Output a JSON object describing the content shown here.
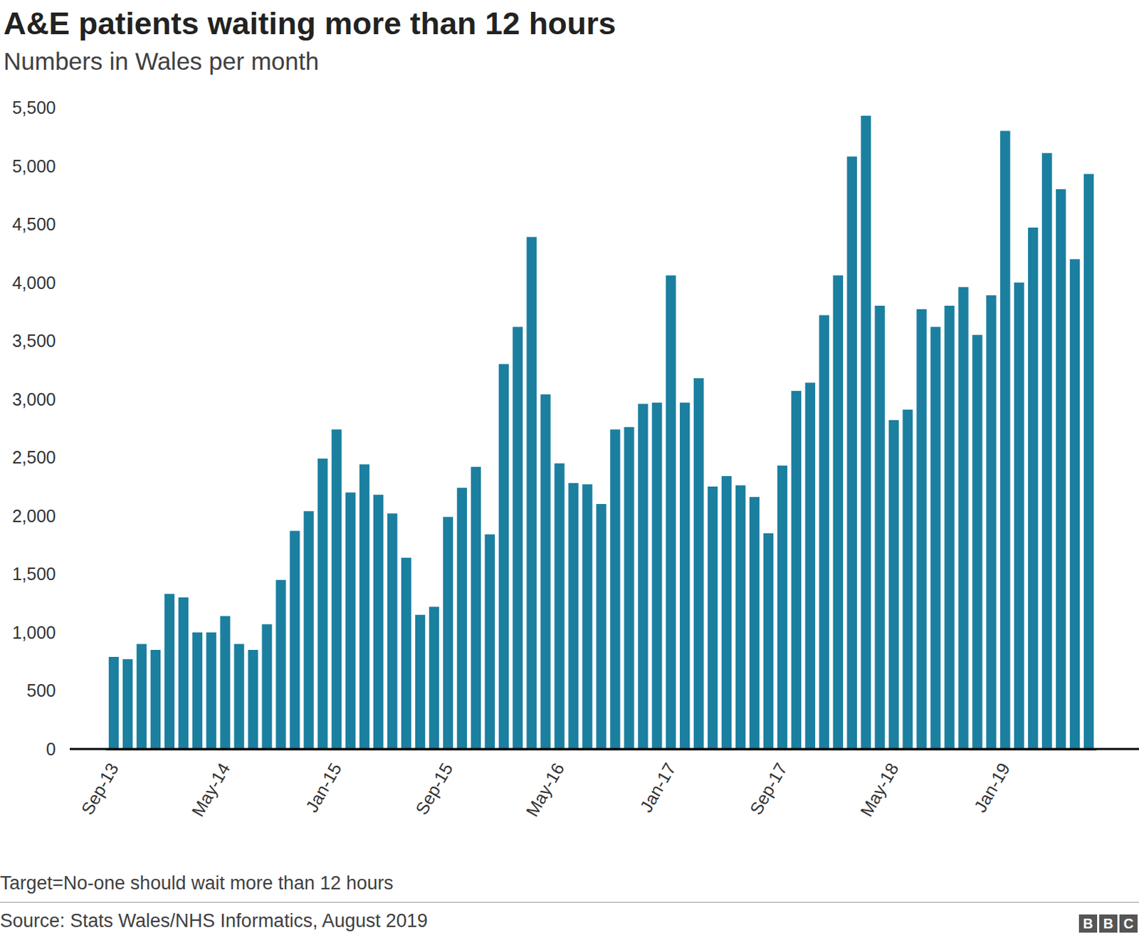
{
  "chart_data": {
    "type": "bar",
    "title": "A&E patients waiting more than 12 hours",
    "subtitle": "Numbers in Wales per month",
    "footnote": "Target=No-one should wait more than 12 hours",
    "source": "Source: Stats Wales/NHS Informatics, August 2019",
    "brand": "BBC",
    "categories": [
      "Sep-13",
      null,
      null,
      null,
      null,
      null,
      null,
      null,
      "May-14",
      null,
      null,
      null,
      null,
      null,
      null,
      null,
      "Jan-15",
      null,
      null,
      null,
      null,
      null,
      null,
      null,
      "Sep-15",
      null,
      null,
      null,
      null,
      null,
      null,
      null,
      "May-16",
      null,
      null,
      null,
      null,
      null,
      null,
      null,
      "Jan-17",
      null,
      null,
      null,
      null,
      null,
      null,
      null,
      "Sep-17",
      null,
      null,
      null,
      null,
      null,
      null,
      null,
      "May-18",
      null,
      null,
      null,
      null,
      null,
      null,
      null,
      "Jan-19",
      null,
      null,
      null,
      null,
      null,
      null
    ],
    "values": [
      790,
      770,
      900,
      850,
      1330,
      1300,
      1000,
      1000,
      1140,
      900,
      850,
      1070,
      1450,
      1870,
      2040,
      2490,
      2740,
      2200,
      2440,
      2180,
      2020,
      1640,
      1150,
      1220,
      1990,
      2240,
      2420,
      1840,
      3300,
      3620,
      4390,
      3040,
      2450,
      2280,
      2270,
      2100,
      2740,
      2760,
      2960,
      2970,
      4060,
      2970,
      3180,
      2250,
      2340,
      2260,
      2160,
      1850,
      2430,
      3070,
      3140,
      3720,
      4060,
      5080,
      5430,
      3800,
      2820,
      2910,
      3770,
      3620,
      3800,
      3960,
      3550,
      3890,
      5300,
      4000,
      4470,
      5110,
      4800,
      4200,
      4930
    ],
    "color": "#1b7fa0",
    "ylim": [
      0,
      5500
    ],
    "yticks": [
      0,
      500,
      {
        "value": 1000,
        "label": "1,000"
      },
      {
        "value": 1500,
        "label": "1,500"
      },
      {
        "value": 2000,
        "label": "2,000"
      },
      {
        "value": 2500,
        "label": "2,500"
      },
      {
        "value": 3000,
        "label": "3,000"
      },
      {
        "value": 3500,
        "label": "3,500"
      },
      {
        "value": 4000,
        "label": "4,000"
      },
      {
        "value": 4500,
        "label": "4,500"
      },
      {
        "value": 5000,
        "label": "5,000"
      },
      {
        "value": 5500,
        "label": "5,500"
      }
    ],
    "grid": false
  }
}
